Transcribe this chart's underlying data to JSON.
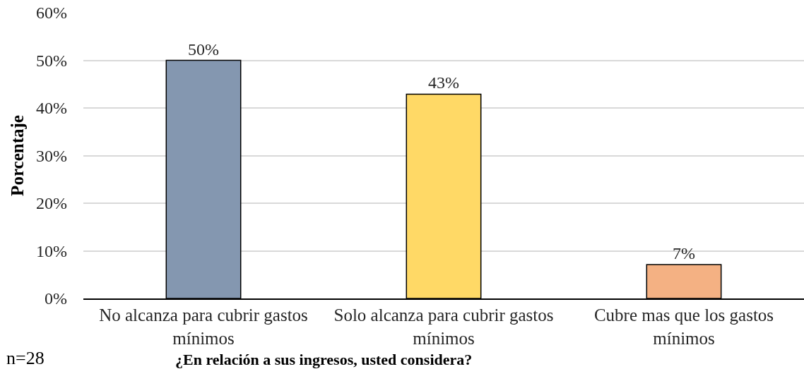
{
  "chart_data": {
    "type": "bar",
    "xlabel": "¿En relación a sus ingresos, usted considera?",
    "ylabel": "Porcentaje",
    "categories": [
      "No alcanza para cubrir gastos mínimos",
      "Solo alcanza para cubrir gastos mínimos",
      "Cubre mas que los gastos mínimos"
    ],
    "values": [
      50,
      42.9,
      7.1
    ],
    "colors": [
      "#8497b0",
      "#ffd966",
      "#f4b183"
    ],
    "value_labels": [
      "50%",
      "43%",
      "7%"
    ],
    "ylim": [
      0,
      60
    ],
    "yticks": [
      {
        "value": 0,
        "label": "0%"
      },
      {
        "value": 10,
        "label": "10%"
      },
      {
        "value": 20,
        "label": "20%"
      },
      {
        "value": 30,
        "label": "30%"
      },
      {
        "value": 40,
        "label": "40%"
      },
      {
        "value": 50,
        "label": "50%"
      },
      {
        "value": 60,
        "label": "60%"
      }
    ],
    "grid": "y",
    "annotations": [
      "n=28"
    ]
  }
}
